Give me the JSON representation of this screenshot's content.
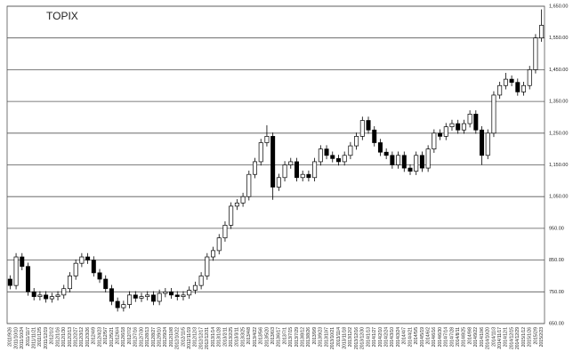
{
  "chart_data": {
    "type": "candlestick",
    "title": "TOPIX",
    "categories": [
      "2011/9/26",
      "2011/10/10",
      "2011/10/24",
      "2011/11/7",
      "2011/11/21",
      "2011/12/5",
      "2011/12/19",
      "2012/1/2",
      "2012/1/16",
      "2012/1/30",
      "2012/2/13",
      "2012/2/27",
      "2012/3/12",
      "2012/3/26",
      "2012/4/9",
      "2012/4/23",
      "2012/5/7",
      "2012/5/21",
      "2012/6/4",
      "2012/6/18",
      "2012/7/2",
      "2012/7/16",
      "2012/7/30",
      "2012/8/13",
      "2012/8/27",
      "2012/9/10",
      "2012/9/24",
      "2012/10/8",
      "2012/10/22",
      "2012/11/5",
      "2012/11/19",
      "2012/12/3",
      "2012/12/17",
      "2012/12/31",
      "2013/1/14",
      "2013/1/28",
      "2013/2/11",
      "2013/2/25",
      "2013/3/11",
      "2013/3/25",
      "2013/4/8",
      "2013/4/22",
      "2013/5/6",
      "2013/5/20",
      "2013/6/3",
      "2013/6/17",
      "2013/7/1",
      "2013/7/15",
      "2013/7/29",
      "2013/8/12",
      "2013/8/26",
      "2013/9/9",
      "2013/9/23",
      "2013/10/7",
      "2013/10/21",
      "2013/11/4",
      "2013/11/18",
      "2013/12/2",
      "2013/12/16",
      "2013/12/30",
      "2014/1/13",
      "2014/1/27",
      "2014/2/10",
      "2014/2/24",
      "2014/3/10",
      "2014/3/24",
      "2014/4/7",
      "2014/4/21",
      "2014/5/5",
      "2014/5/19",
      "2014/6/2",
      "2014/6/16",
      "2014/6/30",
      "2014/7/14",
      "2014/7/28",
      "2014/8/11",
      "2014/8/25",
      "2014/9/8",
      "2014/9/22",
      "2014/10/6",
      "2014/10/20",
      "2014/11/3",
      "2014/11/17",
      "2014/12/1",
      "2014/12/15",
      "2014/12/29",
      "2015/1/12",
      "2015/1/26",
      "2015/2/9",
      "2015/2/23"
    ],
    "open": [
      790,
      770,
      860,
      830,
      750,
      735,
      740,
      728,
      735,
      740,
      760,
      800,
      840,
      860,
      850,
      810,
      790,
      760,
      720,
      700,
      710,
      740,
      730,
      735,
      740,
      720,
      745,
      750,
      740,
      735,
      740,
      755,
      770,
      800,
      860,
      880,
      920,
      960,
      1020,
      1030,
      1050,
      1120,
      1160,
      1220,
      1240,
      1080,
      1110,
      1150,
      1160,
      1110,
      1120,
      1110,
      1160,
      1200,
      1180,
      1170,
      1160,
      1180,
      1210,
      1240,
      1290,
      1260,
      1220,
      1190,
      1180,
      1150,
      1180,
      1140,
      1130,
      1180,
      1140,
      1200,
      1250,
      1240,
      1270,
      1280,
      1260,
      1280,
      1310,
      1260,
      1180,
      1250,
      1370,
      1400,
      1420,
      1410,
      1380,
      1400,
      1450,
      1550
    ],
    "high": [
      802,
      872,
      872,
      842,
      762,
      752,
      752,
      747,
      752,
      772,
      812,
      852,
      872,
      872,
      862,
      822,
      802,
      772,
      732,
      722,
      752,
      752,
      747,
      752,
      752,
      757,
      762,
      762,
      752,
      752,
      767,
      782,
      812,
      872,
      892,
      932,
      972,
      1032,
      1042,
      1062,
      1132,
      1172,
      1232,
      1275,
      1252,
      1122,
      1162,
      1172,
      1172,
      1132,
      1132,
      1172,
      1212,
      1212,
      1192,
      1182,
      1192,
      1222,
      1252,
      1302,
      1302,
      1272,
      1232,
      1202,
      1192,
      1192,
      1192,
      1152,
      1192,
      1192,
      1212,
      1262,
      1262,
      1282,
      1292,
      1292,
      1292,
      1322,
      1322,
      1272,
      1262,
      1382,
      1412,
      1440,
      1432,
      1422,
      1412,
      1462,
      1562,
      1640
    ],
    "low": [
      758,
      758,
      818,
      738,
      723,
      723,
      716,
      716,
      723,
      728,
      748,
      788,
      828,
      838,
      798,
      778,
      748,
      708,
      688,
      688,
      698,
      718,
      718,
      723,
      708,
      708,
      733,
      728,
      723,
      723,
      728,
      743,
      758,
      788,
      848,
      868,
      908,
      948,
      1008,
      1018,
      1038,
      1108,
      1148,
      1208,
      1040,
      1068,
      1098,
      1138,
      1098,
      1098,
      1098,
      1098,
      1148,
      1168,
      1158,
      1148,
      1148,
      1168,
      1198,
      1228,
      1248,
      1208,
      1178,
      1168,
      1138,
      1138,
      1128,
      1118,
      1118,
      1128,
      1128,
      1188,
      1228,
      1228,
      1258,
      1248,
      1248,
      1268,
      1248,
      1150,
      1168,
      1238,
      1358,
      1388,
      1398,
      1368,
      1368,
      1388,
      1438,
      1538
    ],
    "close": [
      770,
      860,
      830,
      750,
      735,
      740,
      728,
      735,
      740,
      760,
      800,
      840,
      860,
      850,
      810,
      790,
      760,
      720,
      700,
      710,
      740,
      730,
      735,
      740,
      720,
      745,
      750,
      740,
      735,
      740,
      755,
      770,
      800,
      860,
      880,
      920,
      960,
      1020,
      1030,
      1050,
      1120,
      1160,
      1220,
      1240,
      1080,
      1110,
      1150,
      1160,
      1110,
      1120,
      1110,
      1160,
      1200,
      1180,
      1170,
      1160,
      1180,
      1210,
      1240,
      1290,
      1260,
      1220,
      1190,
      1180,
      1150,
      1180,
      1140,
      1130,
      1180,
      1140,
      1200,
      1250,
      1240,
      1270,
      1280,
      1260,
      1280,
      1310,
      1260,
      1180,
      1250,
      1370,
      1400,
      1420,
      1410,
      1380,
      1400,
      1450,
      1550,
      1590
    ],
    "ylim": [
      650,
      1650
    ],
    "yticks": [
      {
        "value": 650,
        "label": "650.00"
      },
      {
        "value": 750,
        "label": "750.00"
      },
      {
        "value": 850,
        "label": "850.00"
      },
      {
        "value": 950,
        "label": "950.00"
      },
      {
        "value": 1050,
        "label": "1,050.00"
      },
      {
        "value": 1150,
        "label": "1,150.00"
      },
      {
        "value": 1250,
        "label": "1,250.00"
      },
      {
        "value": 1350,
        "label": "1,350.00"
      },
      {
        "value": 1450,
        "label": "1,450.00"
      },
      {
        "value": 1550,
        "label": "1,550.00"
      },
      {
        "value": 1650,
        "label": "1,650.00"
      }
    ],
    "grid": true,
    "up_color": "#ffffff",
    "down_color": "#000000",
    "title_color": "#3a7fc4"
  }
}
